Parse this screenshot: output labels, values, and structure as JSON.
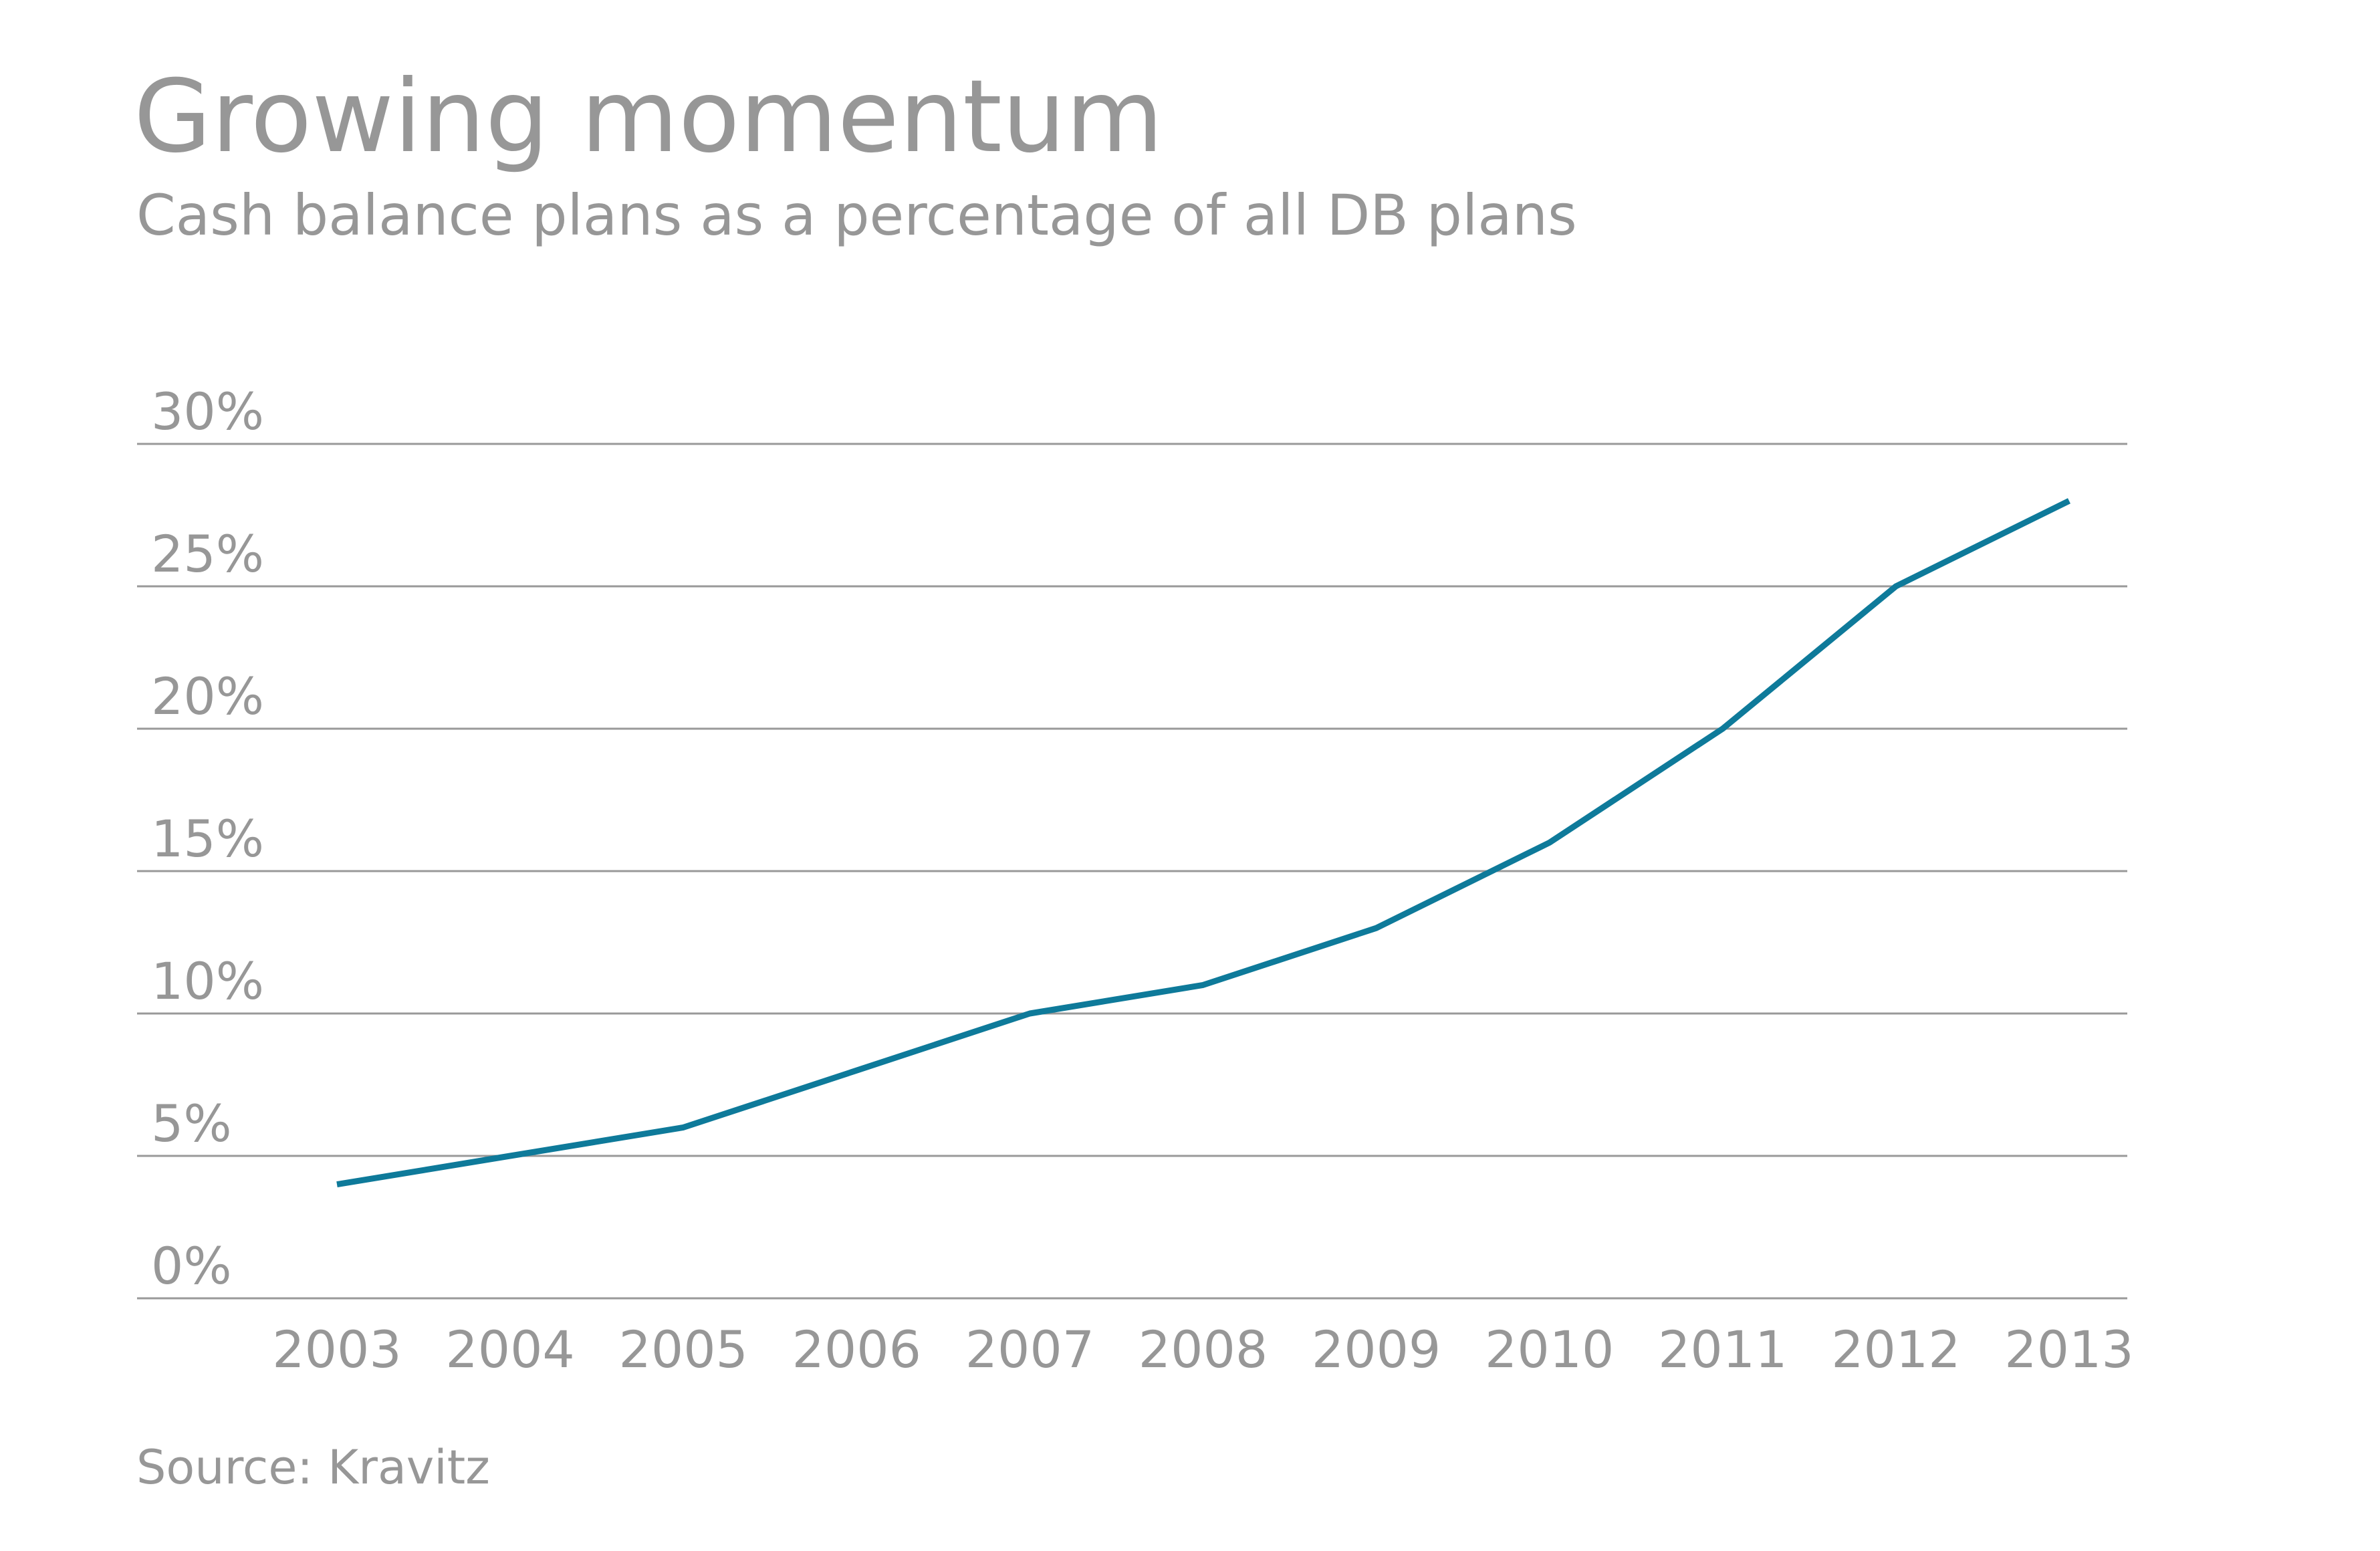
{
  "chart_data": {
    "type": "line",
    "title": "Growing momentum",
    "subtitle": "Cash balance plans as a percentage of all DB plans",
    "source": "Source: Kravitz",
    "x": [
      "2003",
      "2004",
      "2005",
      "2006",
      "2007",
      "2008",
      "2009",
      "2010",
      "2011",
      "2012",
      "2013"
    ],
    "series": [
      {
        "values": [
          4,
          5,
          6,
          8,
          10,
          11,
          13,
          16,
          20,
          25,
          28
        ]
      }
    ],
    "yticks": [
      0,
      5,
      10,
      15,
      20,
      25,
      30
    ],
    "ytick_labels": [
      "0%",
      "5%",
      "10%",
      "15%",
      "20%",
      "25%",
      "30%"
    ],
    "ylim": [
      0,
      30
    ],
    "grid": true,
    "line_color": "#0e7a9a",
    "grid_color": "#999999",
    "text_color": "#979797"
  }
}
